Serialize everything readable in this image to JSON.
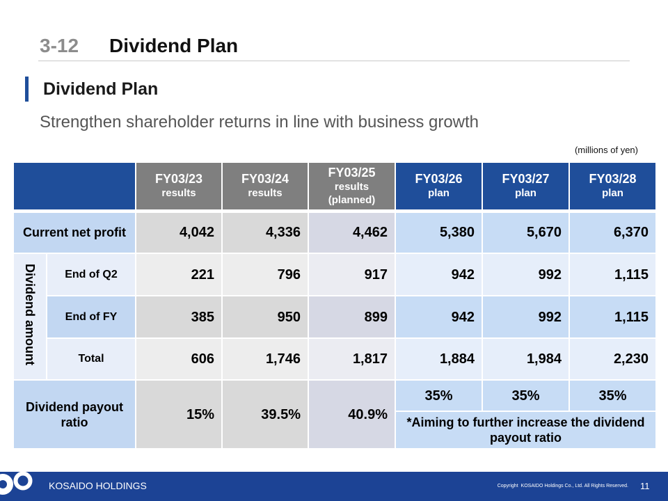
{
  "header": {
    "section_number": "3-12",
    "section_title": "Dividend Plan"
  },
  "heading": "Dividend Plan",
  "subtitle": "Strengthen shareholder returns in line with business growth",
  "unit_note": "(millions of yen)",
  "table": {
    "columns": [
      {
        "fy": "FY03/23",
        "sub": "results"
      },
      {
        "fy": "FY03/24",
        "sub": "results"
      },
      {
        "fy": "FY03/25",
        "sub": "results",
        "sub2": "(planned)"
      },
      {
        "fy": "FY03/26",
        "sub": "plan"
      },
      {
        "fy": "FY03/27",
        "sub": "plan"
      },
      {
        "fy": "FY03/28",
        "sub": "plan"
      }
    ],
    "net_profit": {
      "label": "Current net profit",
      "values": [
        "4,042",
        "4,336",
        "4,462",
        "5,380",
        "5,670",
        "6,370"
      ]
    },
    "dividend_amount": {
      "label": "Dividend amount",
      "end_of_q2": {
        "label": "End of Q2",
        "values": [
          "221",
          "796",
          "917",
          "942",
          "992",
          "1,115"
        ]
      },
      "end_of_fy": {
        "label": "End of FY",
        "values": [
          "385",
          "950",
          "899",
          "942",
          "992",
          "1,115"
        ]
      },
      "total": {
        "label": "Total",
        "values": [
          "606",
          "1,746",
          "1,817",
          "1,884",
          "1,984",
          "2,230"
        ]
      }
    },
    "payout_ratio": {
      "label": "Dividend payout ratio",
      "values": [
        "15%",
        "39.5%",
        "40.9%",
        "35%",
        "35%",
        "35%"
      ],
      "note": "*Aiming to further increase the dividend payout ratio"
    }
  },
  "footer": {
    "brand": "KOSAIDO HOLDINGS",
    "copyright": "Copyright  KOSAIDO Holdings Co., Ltd. All Rights Reserved.",
    "page_number": "11"
  },
  "colors": {
    "header_blue": "#1f4e9a",
    "header_gray": "#7f7f7f",
    "label_blue": "#c2d7f2",
    "label_light": "#e8eef9",
    "gray_strong": "#d9d9d9",
    "gray_light": "#ededed",
    "lavender_strong": "#d6d8e4",
    "lavender_light": "#ebecf2",
    "blue_strong": "#c7dcf5",
    "blue_light": "#e6eefa",
    "footer_blue": "#1c4395",
    "accent_bar": "#1f4e9a",
    "section_number_gray": "#8c8c8c"
  }
}
